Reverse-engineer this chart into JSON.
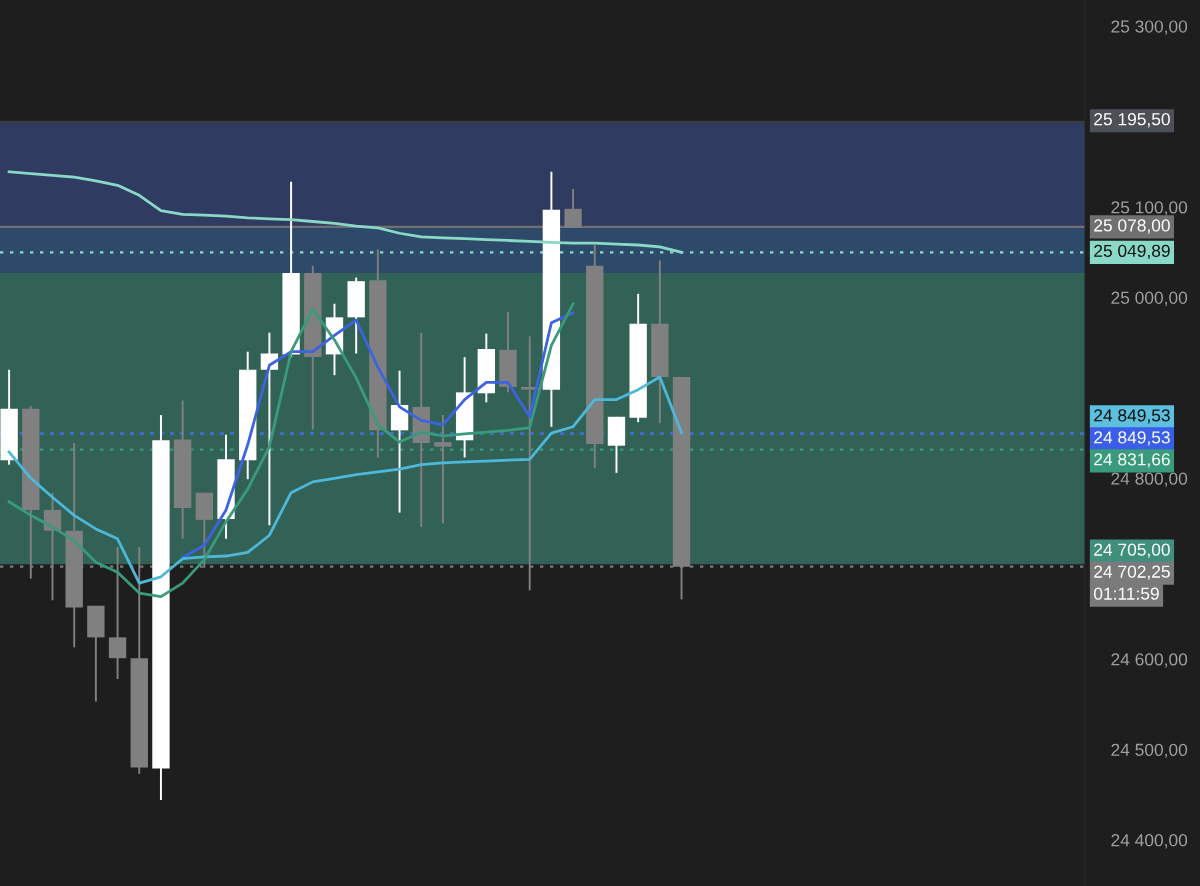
{
  "chart_data": {
    "type": "candlestick",
    "categories": [
      null,
      null,
      null,
      null,
      null,
      null,
      null,
      null,
      null,
      null,
      null,
      null,
      null,
      null,
      null,
      null,
      null,
      null,
      null,
      null,
      null,
      null,
      null,
      null,
      null,
      null,
      null,
      null,
      null,
      null,
      null,
      null,
      null,
      null,
      null,
      null,
      null,
      null,
      null,
      null,
      null,
      null,
      null,
      null,
      null,
      null,
      null,
      null,
      null,
      null
    ],
    "ohlc": [
      [
        24820,
        24920,
        24815,
        24877
      ],
      [
        24877,
        24880,
        24689,
        24765
      ],
      [
        24765,
        24784,
        24665,
        24742
      ],
      [
        24742,
        24839,
        24613,
        24657
      ],
      [
        24659,
        24659,
        24553,
        24624
      ],
      [
        24624,
        24724,
        24578,
        24601
      ],
      [
        24601,
        24724,
        24473,
        24480
      ],
      [
        24479,
        24870,
        24444,
        24842
      ],
      [
        24843,
        24886,
        24733,
        24767
      ],
      [
        24784,
        24784,
        24701,
        24754
      ],
      [
        24755,
        24848,
        24733,
        24821
      ],
      [
        24820,
        24940,
        24799,
        24920
      ],
      [
        24920,
        24961,
        24748,
        24938
      ],
      [
        24937,
        25128,
        24934,
        25027
      ],
      [
        25027,
        25035,
        24854,
        24934
      ],
      [
        24937,
        24993,
        24914,
        24978
      ],
      [
        24978,
        25022,
        24938,
        25018
      ],
      [
        25019,
        25053,
        24823,
        24853
      ],
      [
        24853,
        24919,
        24762,
        24881
      ],
      [
        24879,
        24961,
        24746,
        24839
      ],
      [
        24840,
        24870,
        24750,
        24835
      ],
      [
        24842,
        24934,
        24823,
        24895
      ],
      [
        24894,
        24960,
        24884,
        24943
      ],
      [
        24942,
        24984,
        24895,
        24901
      ],
      [
        24901,
        24957,
        24676,
        24898
      ],
      [
        24898,
        25139,
        24857,
        25097
      ],
      [
        25098,
        25120,
        25077,
        25077
      ],
      [
        25035,
        25058,
        24811,
        24838
      ],
      [
        24836,
        24868,
        24806,
        24868
      ],
      [
        24867,
        25004,
        24862,
        24971
      ],
      [
        24971,
        25041,
        24861,
        24912
      ],
      [
        24912,
        24912,
        24666,
        24702.25
      ],
      null,
      null,
      null,
      null,
      null,
      null,
      null,
      null,
      null,
      null,
      null,
      null,
      null,
      null,
      null,
      null,
      null,
      null
    ],
    "series": [
      {
        "type": "line",
        "color": "#8ad9c6",
        "values": [
          25139,
          25137,
          25135,
          25133,
          25129,
          25124,
          25113,
          25096,
          25092,
          25091,
          25090,
          25088,
          25087,
          25086,
          25084,
          25082,
          25079,
          25077,
          25071,
          25067,
          25066,
          25065,
          25064,
          25063,
          25062,
          25061,
          25060,
          25060,
          25059,
          25058,
          25056,
          25050,
          null,
          null,
          null,
          null,
          null,
          null,
          null,
          null,
          null,
          null,
          null,
          null,
          null,
          null,
          null,
          null,
          null,
          null
        ]
      },
      {
        "type": "line",
        "color": "#3d63e0",
        "values": [
          null,
          null,
          null,
          null,
          null,
          null,
          null,
          null,
          24712,
          24726,
          24765,
          24837,
          24925,
          24940,
          24940,
          24958,
          24975,
          24923,
          24879,
          24864,
          24859,
          24887,
          24906,
          24906,
          24868,
          24972,
          24983,
          null,
          null,
          null,
          null,
          null,
          null,
          null,
          null,
          null,
          null,
          null,
          null,
          null,
          null,
          null,
          null,
          null,
          null,
          null,
          null,
          null,
          null,
          null
        ]
      },
      {
        "type": "line",
        "color": "#4db8da",
        "values": [
          24829,
          24800,
          24779,
          24759,
          24744,
          24733,
          24684,
          24691,
          24711,
          24713,
          24714,
          24718,
          24737,
          24784,
          24796,
          24800,
          24804,
          24807,
          24810,
          24815,
          24817,
          24818,
          24819,
          24820,
          24821,
          24850,
          24857,
          24887,
          24887,
          24898,
          24912,
          24850,
          null,
          null,
          null,
          null,
          null,
          null,
          null,
          null,
          null,
          null,
          null,
          null,
          null,
          null,
          null,
          null,
          null,
          null
        ]
      },
      {
        "type": "line",
        "color": "#3a9a7c",
        "values": [
          24774,
          24759,
          24746,
          24731,
          24707,
          24696,
          24673,
          24669,
          24684,
          24710,
          24752,
          24788,
          24835,
          24940,
          24987,
          24953,
          24911,
          24859,
          24840,
          24851,
          24847,
          24849,
          24851,
          24853,
          24856,
          24947,
          24993,
          null,
          null,
          null,
          null,
          null,
          null,
          null,
          null,
          null,
          null,
          null,
          null,
          null,
          null,
          null,
          null,
          null,
          null,
          null,
          null,
          null,
          null,
          null
        ]
      }
    ],
    "ylim": [
      24349,
      25329
    ],
    "yticks": [
      {
        "value": 24400,
        "label": "24 400,00"
      },
      {
        "value": 24500,
        "label": "24 500,00"
      },
      {
        "value": 24600,
        "label": "24 600,00"
      },
      {
        "value": 24800,
        "label": "24 800,00"
      },
      {
        "value": 25000,
        "label": "25 000,00"
      },
      {
        "value": 25100,
        "label": "25 100,00"
      },
      {
        "value": 25300,
        "label": "25 300,00"
      }
    ],
    "bands": [
      {
        "axis": "y",
        "from": 25195.5,
        "to": 25078,
        "color": "#4e5058",
        "label": "25 195,50"
      },
      {
        "axis": "y",
        "from": 24705,
        "to": 25078,
        "color": "#3f8f7c",
        "label": "24 705,00"
      },
      {
        "axis": "y",
        "from": 25193,
        "to": 25027,
        "color": "#2a3a78"
      }
    ],
    "ref_lines": [
      {
        "axis": "y",
        "value": 25078,
        "label": "25 078,00",
        "color": "#707070",
        "line_style": "solid"
      },
      {
        "axis": "y",
        "value": 25049.89,
        "label": "25 049,89",
        "color": "#8ad9c6",
        "line_style": "dotted"
      },
      {
        "axis": "y",
        "value": 24849.53,
        "label": "24 849,53",
        "color": "#5bbfdd",
        "line_style": "dotted"
      },
      {
        "axis": "y",
        "value": 24849.53,
        "label": "24 849,53",
        "color": "#3a5ee8",
        "line_style": "dotted"
      },
      {
        "axis": "y",
        "value": 24831.66,
        "label": "24 831,66",
        "color": "#3a9a7c",
        "line_style": "dotted"
      },
      {
        "axis": "y",
        "value": 24702.25,
        "label": "24 702,25",
        "color": "#7a7a7a",
        "line_style": "dotted"
      }
    ],
    "annotations": [
      "01:11:59"
    ],
    "grid": false,
    "legend": false
  }
}
